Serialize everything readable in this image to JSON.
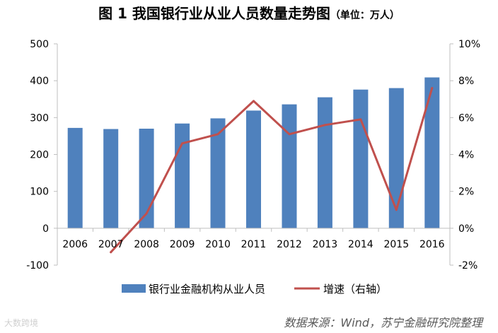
{
  "title": {
    "main": "图 1  我国银行业从业人员数量走势图",
    "unit": "（单位：万人）"
  },
  "source_note": "数据来源：Wind，苏宁金融研究院整理",
  "watermark": "大数跨境",
  "colors": {
    "bar": "#4f81bd",
    "line": "#c0504d",
    "axis": "#bfbfbf",
    "text": "#000000"
  },
  "chart_data": {
    "type": "bar+line",
    "title": "我国银行业从业人员数量走势图",
    "categories": [
      "2006",
      "2007",
      "2008",
      "2009",
      "2010",
      "2011",
      "2012",
      "2013",
      "2014",
      "2015",
      "2016"
    ],
    "series": [
      {
        "name": "银行业金融机构从业人员",
        "type": "bar",
        "axis": "left",
        "values": [
          272,
          269,
          270,
          284,
          298,
          319,
          336,
          355,
          376,
          380,
          409
        ]
      },
      {
        "name": "增速（右轴）",
        "type": "line",
        "axis": "right",
        "values": [
          null,
          -1.3,
          0.8,
          4.6,
          5.1,
          6.9,
          5.1,
          5.6,
          5.9,
          1.0,
          7.6
        ]
      }
    ],
    "left_axis": {
      "range": [
        -100,
        500
      ],
      "ticks": [
        500,
        400,
        300,
        200,
        100,
        0,
        -100
      ],
      "tick_labels": [
        "500",
        "400",
        "300",
        "200",
        "100",
        "0",
        "-100"
      ]
    },
    "right_axis": {
      "range": [
        -2,
        10
      ],
      "ticks": [
        10,
        8,
        6,
        4,
        2,
        0,
        -2
      ],
      "tick_labels": [
        "10%",
        "8%",
        "6%",
        "4%",
        "2%",
        "0%",
        "-2%"
      ]
    },
    "legend": {
      "position": "bottom",
      "items": [
        "银行业金融机构从业人员",
        "增速（右轴）"
      ]
    },
    "grid": false
  }
}
